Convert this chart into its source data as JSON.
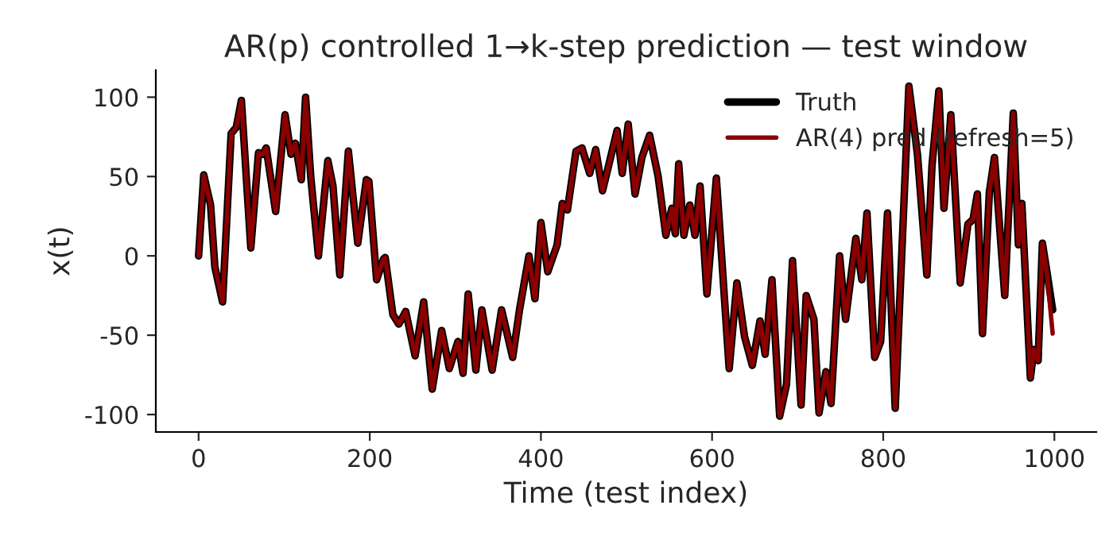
{
  "chart_data": {
    "type": "line",
    "title": "AR(p) controlled 1→k-step prediction — test window",
    "xlabel": "Time (test index)",
    "ylabel": "x(t)",
    "x": [
      0,
      6,
      14,
      19,
      28,
      38,
      44,
      50,
      61,
      70,
      75,
      79,
      90,
      101,
      108,
      113,
      120,
      125,
      131,
      140,
      151,
      157,
      165,
      175,
      186,
      196,
      199,
      208,
      216,
      218,
      227,
      234,
      242,
      253,
      263,
      273,
      284,
      293,
      303,
      309,
      315,
      324,
      331,
      343,
      354,
      367,
      375,
      386,
      393,
      400,
      408,
      419,
      425,
      431,
      441,
      448,
      457,
      464,
      472,
      489,
      495,
      502,
      510,
      518,
      527,
      537,
      546,
      553,
      557,
      561,
      567,
      574,
      580,
      586,
      594,
      605,
      620,
      629,
      638,
      647,
      656,
      662,
      670,
      679,
      687,
      694,
      704,
      710,
      719,
      725,
      733,
      739,
      749,
      756,
      768,
      775,
      781,
      790,
      797,
      805,
      814,
      830,
      840,
      851,
      857,
      865,
      871,
      879,
      890,
      899,
      905,
      910,
      916,
      924,
      930,
      942,
      952,
      958,
      962,
      972,
      976,
      981,
      986,
      991,
      998
    ],
    "series": [
      {
        "name": "Truth",
        "color": "#000000",
        "values": [
          0,
          51,
          32,
          -7,
          -29,
          77,
          81,
          98,
          5,
          65,
          64,
          68,
          28,
          89,
          64,
          71,
          48,
          100,
          50,
          0,
          60,
          44,
          -12,
          66,
          8,
          48,
          47,
          -15,
          -2,
          -1,
          -37,
          -43,
          -35,
          -63,
          -29,
          -84,
          -47,
          -71,
          -54,
          -74,
          -24,
          -72,
          -34,
          -72,
          -34,
          -64,
          -34,
          0,
          -27,
          21,
          -10,
          7,
          33,
          29,
          66,
          68,
          52,
          67,
          41,
          79,
          52,
          83,
          39,
          62,
          76,
          50,
          13,
          30,
          14,
          58,
          13,
          32,
          13,
          44,
          -24,
          49,
          -71,
          -17,
          -51,
          -69,
          -41,
          -62,
          -15,
          -101,
          -81,
          -3,
          -94,
          -25,
          -40,
          -99,
          -73,
          -93,
          0,
          -40,
          11,
          -15,
          27,
          -64,
          -54,
          27,
          -96,
          107,
          64,
          -12,
          57,
          104,
          30,
          89,
          -17,
          20,
          23,
          39,
          -49,
          40,
          62,
          -25,
          90,
          7,
          33,
          -77,
          -59,
          -66,
          8,
          -9,
          -34
        ]
      },
      {
        "name": "AR(4) pred (refresh=5)",
        "color": "#8b0000",
        "values": [
          0,
          51,
          32,
          -7,
          -29,
          77,
          81,
          98,
          5,
          65,
          64,
          68,
          28,
          89,
          64,
          71,
          48,
          100,
          50,
          0,
          60,
          44,
          -12,
          66,
          8,
          48,
          47,
          -15,
          -2,
          -1,
          -37,
          -43,
          -35,
          -63,
          -29,
          -84,
          -47,
          -71,
          -54,
          -74,
          -24,
          -72,
          -34,
          -72,
          -34,
          -64,
          -34,
          0,
          -27,
          21,
          -10,
          7,
          33,
          29,
          66,
          68,
          52,
          67,
          41,
          79,
          52,
          83,
          39,
          62,
          76,
          50,
          13,
          30,
          14,
          58,
          13,
          32,
          13,
          44,
          -24,
          49,
          -71,
          -17,
          -51,
          -69,
          -41,
          -62,
          -15,
          -101,
          -81,
          -3,
          -94,
          -25,
          -40,
          -99,
          -73,
          -93,
          0,
          -40,
          11,
          -15,
          27,
          -64,
          -54,
          27,
          -96,
          107,
          64,
          -12,
          57,
          104,
          30,
          89,
          -17,
          20,
          23,
          39,
          -49,
          40,
          62,
          -25,
          90,
          7,
          33,
          -77,
          -59,
          -66,
          8,
          -9,
          -49
        ]
      }
    ],
    "xlim": [
      -50,
      1049
    ],
    "ylim": [
      -111,
      117
    ],
    "xticks": [
      0,
      200,
      400,
      600,
      800,
      1000
    ],
    "yticks": [
      -100,
      -50,
      0,
      50,
      100
    ],
    "grid": false,
    "legend": "top right",
    "line_style": "solid",
    "marker": "none"
  }
}
